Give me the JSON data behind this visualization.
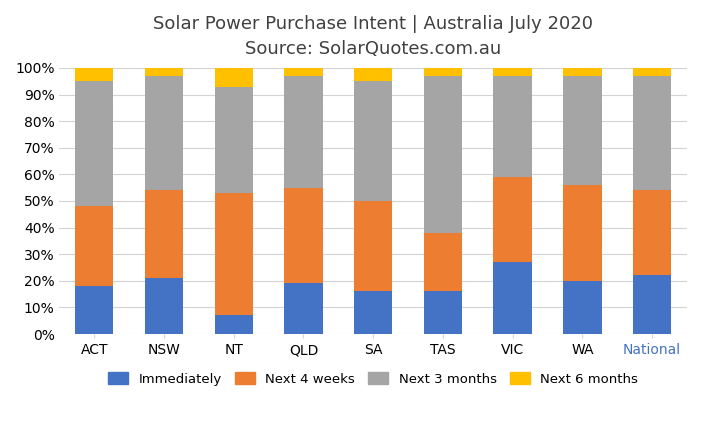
{
  "categories": [
    "ACT",
    "NSW",
    "NT",
    "QLD",
    "SA",
    "TAS",
    "VIC",
    "WA",
    "National"
  ],
  "immediately": [
    18,
    21,
    7,
    19,
    16,
    16,
    27,
    20,
    22
  ],
  "next_4_weeks": [
    30,
    33,
    46,
    36,
    34,
    22,
    32,
    36,
    32
  ],
  "next_3_months": [
    47,
    43,
    40,
    42,
    45,
    59,
    38,
    41,
    43
  ],
  "next_6_months": [
    5,
    3,
    7,
    3,
    5,
    3,
    3,
    3,
    3
  ],
  "color_immediately": "#4472C4",
  "color_next_4_weeks": "#ED7D31",
  "color_next_3_months": "#A5A5A5",
  "color_next_6_months": "#FFC000",
  "title_line1": "Solar Power Purchase Intent | Australia July 2020",
  "title_line2": "Source: SolarQuotes.com.au",
  "ylabel_ticks": [
    "0%",
    "10%",
    "20%",
    "30%",
    "40%",
    "50%",
    "60%",
    "70%",
    "80%",
    "90%",
    "100%"
  ],
  "legend_labels": [
    "Immediately",
    "Next 4 weeks",
    "Next 3 months",
    "Next 6 months"
  ],
  "national_label_color": "#4472C4",
  "background_color": "#FFFFFF",
  "grid_color": "#D3D3D3",
  "title_fontsize": 13,
  "subtitle_fontsize": 12,
  "tick_fontsize": 10
}
